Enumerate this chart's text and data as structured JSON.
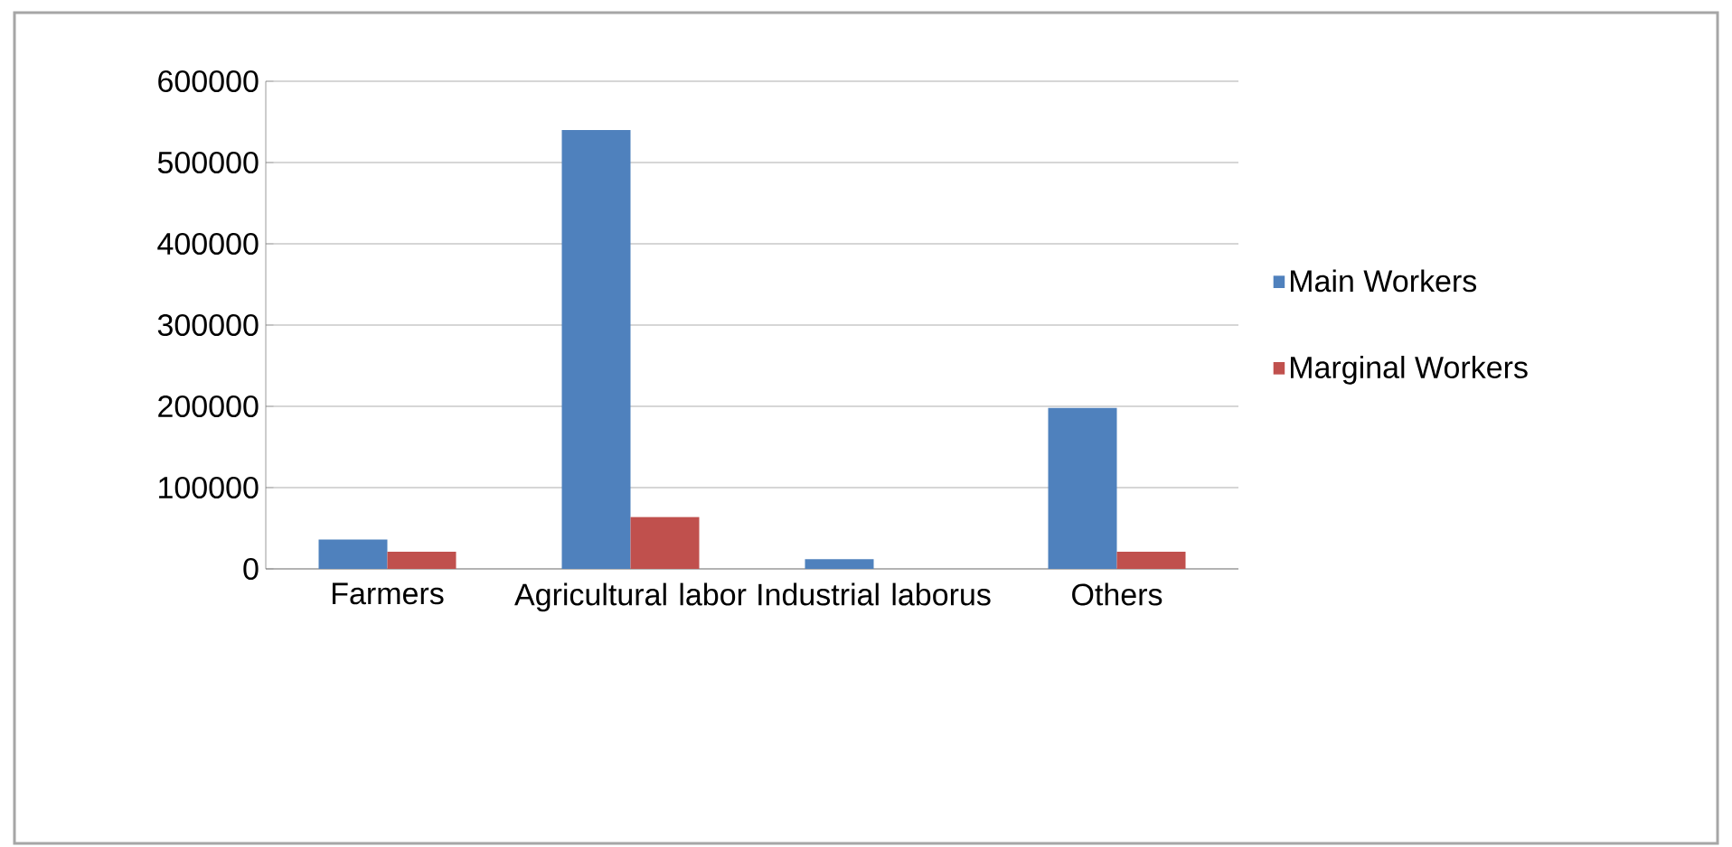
{
  "chart_data": {
    "type": "bar",
    "categories": [
      "Farmers",
      "Agricultural labor",
      "Industrial laborus",
      "Others"
    ],
    "series": [
      {
        "name": "Main  Workers",
        "color": "#4f81bd",
        "values": [
          36000,
          540000,
          12000,
          198000
        ]
      },
      {
        "name": "Marginal Workers",
        "color": "#c0504d",
        "values": [
          21000,
          64000,
          0,
          21000
        ]
      }
    ],
    "ylim": [
      0,
      600000
    ],
    "yticks": [
      0,
      100000,
      200000,
      300000,
      400000,
      500000,
      600000
    ],
    "grid": "y",
    "legend": "right"
  }
}
